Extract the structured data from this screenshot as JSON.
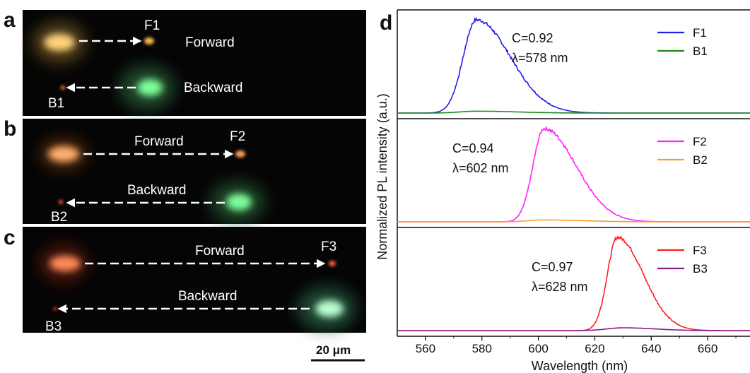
{
  "panels": {
    "a": {
      "label": "a",
      "forward_text": "Forward",
      "backward_text": "Backward",
      "forward_tag": "F1",
      "backward_tag": "B1",
      "source_color": "#ffd27a",
      "forward_spot_color": "#ffb347",
      "backward_spot_color": "#7dff9a"
    },
    "b": {
      "label": "b",
      "forward_text": "Forward",
      "backward_text": "Backward",
      "forward_tag": "F2",
      "backward_tag": "B2",
      "source_color": "#ffb070",
      "forward_spot_color": "#ff9a50",
      "backward_spot_color": "#7dff9a"
    },
    "c": {
      "label": "c",
      "forward_text": "Forward",
      "backward_text": "Backward",
      "forward_tag": "F3",
      "backward_tag": "B3",
      "source_color": "#ff8a5a",
      "forward_spot_color": "#ff5a3a",
      "backward_spot_color": "#b8ffcf"
    },
    "scale_bar": "20 μm"
  },
  "chart_data": {
    "type": "line",
    "panel_label": "d",
    "xlabel": "Wavelength (nm)",
    "ylabel": "Normalized PL intensity (a.u.)",
    "xlim": [
      550,
      675
    ],
    "xticks": [
      560,
      580,
      600,
      620,
      640,
      660
    ],
    "subplots": [
      {
        "annotation": [
          "C=0.92",
          "λ=578 nm"
        ],
        "series": [
          {
            "name": "F1",
            "color": "#1f1fe8",
            "peak": 578,
            "amplitude": 1.0,
            "rise_width": 6.5,
            "fall_width": 17
          },
          {
            "name": "B1",
            "color": "#1f8a1f",
            "peak": 578,
            "amplitude": 0.02,
            "rise_width": 8,
            "fall_width": 20
          }
        ]
      },
      {
        "annotation": [
          "C=0.94",
          "λ=602 nm"
        ],
        "series": [
          {
            "name": "F2",
            "color": "#ff22ff",
            "peak": 602,
            "amplitude": 1.0,
            "rise_width": 5.5,
            "fall_width": 16
          },
          {
            "name": "B2",
            "color": "#ff9a2a",
            "peak": 602,
            "amplitude": 0.02,
            "rise_width": 8,
            "fall_width": 20
          }
        ]
      },
      {
        "annotation": [
          "C=0.97",
          "λ=628 nm"
        ],
        "series": [
          {
            "name": "F3",
            "color": "#ff1f1f",
            "peak": 628,
            "amplitude": 1.0,
            "rise_width": 5,
            "fall_width": 13
          },
          {
            "name": "B3",
            "color": "#8a1a8a",
            "peak": 630,
            "amplitude": 0.03,
            "rise_width": 8,
            "fall_width": 16
          }
        ]
      }
    ]
  }
}
